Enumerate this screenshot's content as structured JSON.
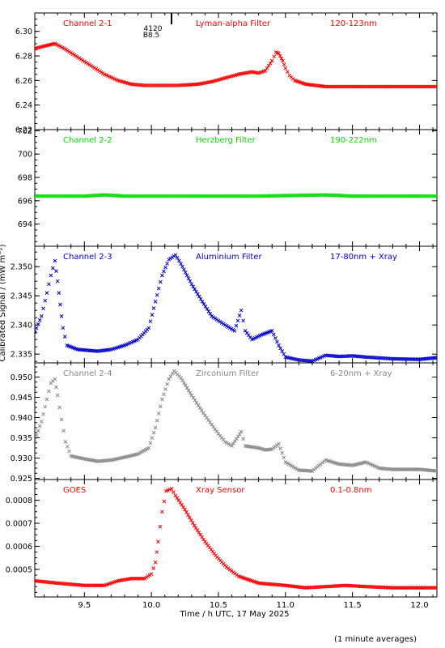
{
  "figure": {
    "x_axis_label": "Time / h UTC, 17 May 2025",
    "y_axis_label": "Calibrated Signal / (mW m⁻²)",
    "footnote": "(1 minute averages)",
    "x_ticks": [
      9.5,
      10.0,
      10.5,
      11.0,
      11.5,
      12.0
    ],
    "xlim": [
      9.13,
      12.13
    ],
    "event_marker": {
      "x": 10.15,
      "label_top": "4120",
      "label_bottom": "B8.5"
    }
  },
  "chart_data": [
    {
      "type": "scatter",
      "panel": "Channel 2-1",
      "labels": [
        "Channel 2-1",
        "Lyman-alpha Filter",
        "120-123nm"
      ],
      "color": "#ff0000",
      "ylim": [
        6.22,
        6.315
      ],
      "y_ticks": [
        6.22,
        6.24,
        6.26,
        6.28,
        6.3
      ],
      "y_tick_labels": [
        "6.22",
        "6.24",
        "6.26",
        "6.28",
        "6.30"
      ],
      "points": [
        [
          9.13,
          6.286
        ],
        [
          9.2,
          6.288
        ],
        [
          9.28,
          6.29
        ],
        [
          9.35,
          6.286
        ],
        [
          9.45,
          6.279
        ],
        [
          9.55,
          6.272
        ],
        [
          9.65,
          6.265
        ],
        [
          9.75,
          6.26
        ],
        [
          9.85,
          6.257
        ],
        [
          9.95,
          6.256
        ],
        [
          10.05,
          6.256
        ],
        [
          10.2,
          6.256
        ],
        [
          10.35,
          6.257
        ],
        [
          10.45,
          6.259
        ],
        [
          10.55,
          6.262
        ],
        [
          10.65,
          6.265
        ],
        [
          10.75,
          6.267
        ],
        [
          10.8,
          6.266
        ],
        [
          10.85,
          6.268
        ],
        [
          10.9,
          6.276
        ],
        [
          10.93,
          6.283
        ],
        [
          10.95,
          6.282
        ],
        [
          10.98,
          6.276
        ],
        [
          11.0,
          6.27
        ],
        [
          11.03,
          6.264
        ],
        [
          11.07,
          6.26
        ],
        [
          11.15,
          6.257
        ],
        [
          11.3,
          6.255
        ],
        [
          11.5,
          6.255
        ],
        [
          11.7,
          6.255
        ],
        [
          11.9,
          6.255
        ],
        [
          12.13,
          6.255
        ]
      ]
    },
    {
      "type": "scatter",
      "panel": "Channel 2-2",
      "labels": [
        "Channel 2-2",
        "Herzberg Filter",
        "190-222nm"
      ],
      "color": "#00dd00",
      "ylim": [
        692.1,
        702.1
      ],
      "y_ticks": [
        694,
        696,
        698,
        700,
        702
      ],
      "y_tick_labels": [
        "694",
        "696",
        "698",
        "700",
        "702"
      ],
      "points": [
        [
          9.13,
          696.4
        ],
        [
          9.5,
          696.4
        ],
        [
          9.65,
          696.5
        ],
        [
          9.8,
          696.4
        ],
        [
          10.2,
          696.4
        ],
        [
          10.8,
          696.4
        ],
        [
          11.3,
          696.5
        ],
        [
          11.5,
          696.4
        ],
        [
          12.13,
          696.4
        ]
      ]
    },
    {
      "type": "scatter",
      "panel": "Channel 2-3",
      "labels": [
        "Channel 2-3",
        "Aluminium Filter",
        "17-80nm + Xray"
      ],
      "color": "#0000cc",
      "ylim": [
        2.3335,
        2.3535
      ],
      "y_ticks": [
        2.335,
        2.34,
        2.345,
        2.35
      ],
      "y_tick_labels": [
        "2.335",
        "2.340",
        "2.345",
        "2.350"
      ],
      "points": [
        [
          9.13,
          2.3388
        ],
        [
          9.18,
          2.3415
        ],
        [
          9.22,
          2.3455
        ],
        [
          9.25,
          2.3485
        ],
        [
          9.28,
          2.351
        ],
        [
          9.3,
          2.3475
        ],
        [
          9.32,
          2.3435
        ],
        [
          9.34,
          2.3395
        ],
        [
          9.37,
          2.3365
        ],
        [
          9.45,
          2.3358
        ],
        [
          9.6,
          2.3355
        ],
        [
          9.7,
          2.3358
        ],
        [
          9.8,
          2.3365
        ],
        [
          9.9,
          2.3375
        ],
        [
          9.98,
          2.3395
        ],
        [
          10.03,
          2.344
        ],
        [
          10.08,
          2.3485
        ],
        [
          10.13,
          2.3512
        ],
        [
          10.18,
          2.352
        ],
        [
          10.22,
          2.3505
        ],
        [
          10.3,
          2.347
        ],
        [
          10.38,
          2.344
        ],
        [
          10.45,
          2.3415
        ],
        [
          10.55,
          2.34
        ],
        [
          10.62,
          2.339
        ],
        [
          10.67,
          2.3425
        ],
        [
          10.7,
          2.339
        ],
        [
          10.75,
          2.3375
        ],
        [
          10.82,
          2.3383
        ],
        [
          10.9,
          2.339
        ],
        [
          10.95,
          2.3365
        ],
        [
          11.0,
          2.3345
        ],
        [
          11.1,
          2.334
        ],
        [
          11.2,
          2.3338
        ],
        [
          11.3,
          2.3348
        ],
        [
          11.4,
          2.3346
        ],
        [
          11.5,
          2.3347
        ],
        [
          11.6,
          2.3345
        ],
        [
          11.8,
          2.3342
        ],
        [
          12.0,
          2.3341
        ],
        [
          12.13,
          2.3344
        ]
      ]
    },
    {
      "type": "scatter",
      "panel": "Channel 2-4",
      "labels": [
        "Channel 2-4",
        "Zirconium Filter",
        "6-20nm + Xray"
      ],
      "color": "#888888",
      "ylim": [
        0.9247,
        0.9535
      ],
      "y_ticks": [
        0.925,
        0.93,
        0.935,
        0.94,
        0.945,
        0.95
      ],
      "y_tick_labels": [
        "0.925",
        "0.930",
        "0.935",
        "0.940",
        "0.945",
        "0.950"
      ],
      "points": [
        [
          9.13,
          0.9345
        ],
        [
          9.18,
          0.939
        ],
        [
          9.22,
          0.9445
        ],
        [
          9.25,
          0.9485
        ],
        [
          9.28,
          0.9495
        ],
        [
          9.3,
          0.9455
        ],
        [
          9.33,
          0.9395
        ],
        [
          9.36,
          0.934
        ],
        [
          9.4,
          0.9305
        ],
        [
          9.5,
          0.9298
        ],
        [
          9.6,
          0.9292
        ],
        [
          9.7,
          0.9295
        ],
        [
          9.8,
          0.9302
        ],
        [
          9.9,
          0.931
        ],
        [
          9.98,
          0.9325
        ],
        [
          10.03,
          0.9375
        ],
        [
          10.08,
          0.9445
        ],
        [
          10.13,
          0.9495
        ],
        [
          10.17,
          0.9515
        ],
        [
          10.22,
          0.9498
        ],
        [
          10.3,
          0.9455
        ],
        [
          10.4,
          0.9405
        ],
        [
          10.5,
          0.936
        ],
        [
          10.55,
          0.934
        ],
        [
          10.6,
          0.933
        ],
        [
          10.67,
          0.9365
        ],
        [
          10.7,
          0.933
        ],
        [
          10.8,
          0.9325
        ],
        [
          10.85,
          0.932
        ],
        [
          10.9,
          0.9322
        ],
        [
          10.95,
          0.9335
        ],
        [
          11.0,
          0.929
        ],
        [
          11.1,
          0.927
        ],
        [
          11.2,
          0.9268
        ],
        [
          11.3,
          0.9295
        ],
        [
          11.4,
          0.9285
        ],
        [
          11.5,
          0.9282
        ],
        [
          11.6,
          0.929
        ],
        [
          11.7,
          0.9275
        ],
        [
          11.8,
          0.9272
        ],
        [
          12.0,
          0.9272
        ],
        [
          12.13,
          0.9268
        ]
      ]
    },
    {
      "type": "scatter",
      "panel": "GOES",
      "labels": [
        "GOES",
        "Xray Sensor",
        "0.1-0.8nm"
      ],
      "color": "#ff0000",
      "ylim": [
        0.00038,
        0.00089
      ],
      "y_ticks": [
        0.0005,
        0.0006,
        0.0007,
        0.0008
      ],
      "y_tick_labels": [
        "0.0005",
        "0.0006",
        "0.0007",
        "0.0008"
      ],
      "points": [
        [
          9.13,
          0.00045
        ],
        [
          9.3,
          0.00044
        ],
        [
          9.5,
          0.00043
        ],
        [
          9.65,
          0.00043
        ],
        [
          9.75,
          0.00045
        ],
        [
          9.85,
          0.00046
        ],
        [
          9.95,
          0.00046
        ],
        [
          10.0,
          0.00048
        ],
        [
          10.03,
          0.00053
        ],
        [
          10.05,
          0.00062
        ],
        [
          10.08,
          0.00075
        ],
        [
          10.11,
          0.00084
        ],
        [
          10.15,
          0.00085
        ],
        [
          10.18,
          0.00082
        ],
        [
          10.25,
          0.00076
        ],
        [
          10.32,
          0.00069
        ],
        [
          10.4,
          0.00062
        ],
        [
          10.48,
          0.00056
        ],
        [
          10.56,
          0.00051
        ],
        [
          10.65,
          0.00047
        ],
        [
          10.8,
          0.00044
        ],
        [
          11.0,
          0.00043
        ],
        [
          11.15,
          0.00042
        ],
        [
          11.3,
          0.000425
        ],
        [
          11.45,
          0.00043
        ],
        [
          11.6,
          0.000425
        ],
        [
          11.8,
          0.00042
        ],
        [
          12.0,
          0.00042
        ],
        [
          12.13,
          0.00042
        ]
      ]
    }
  ]
}
